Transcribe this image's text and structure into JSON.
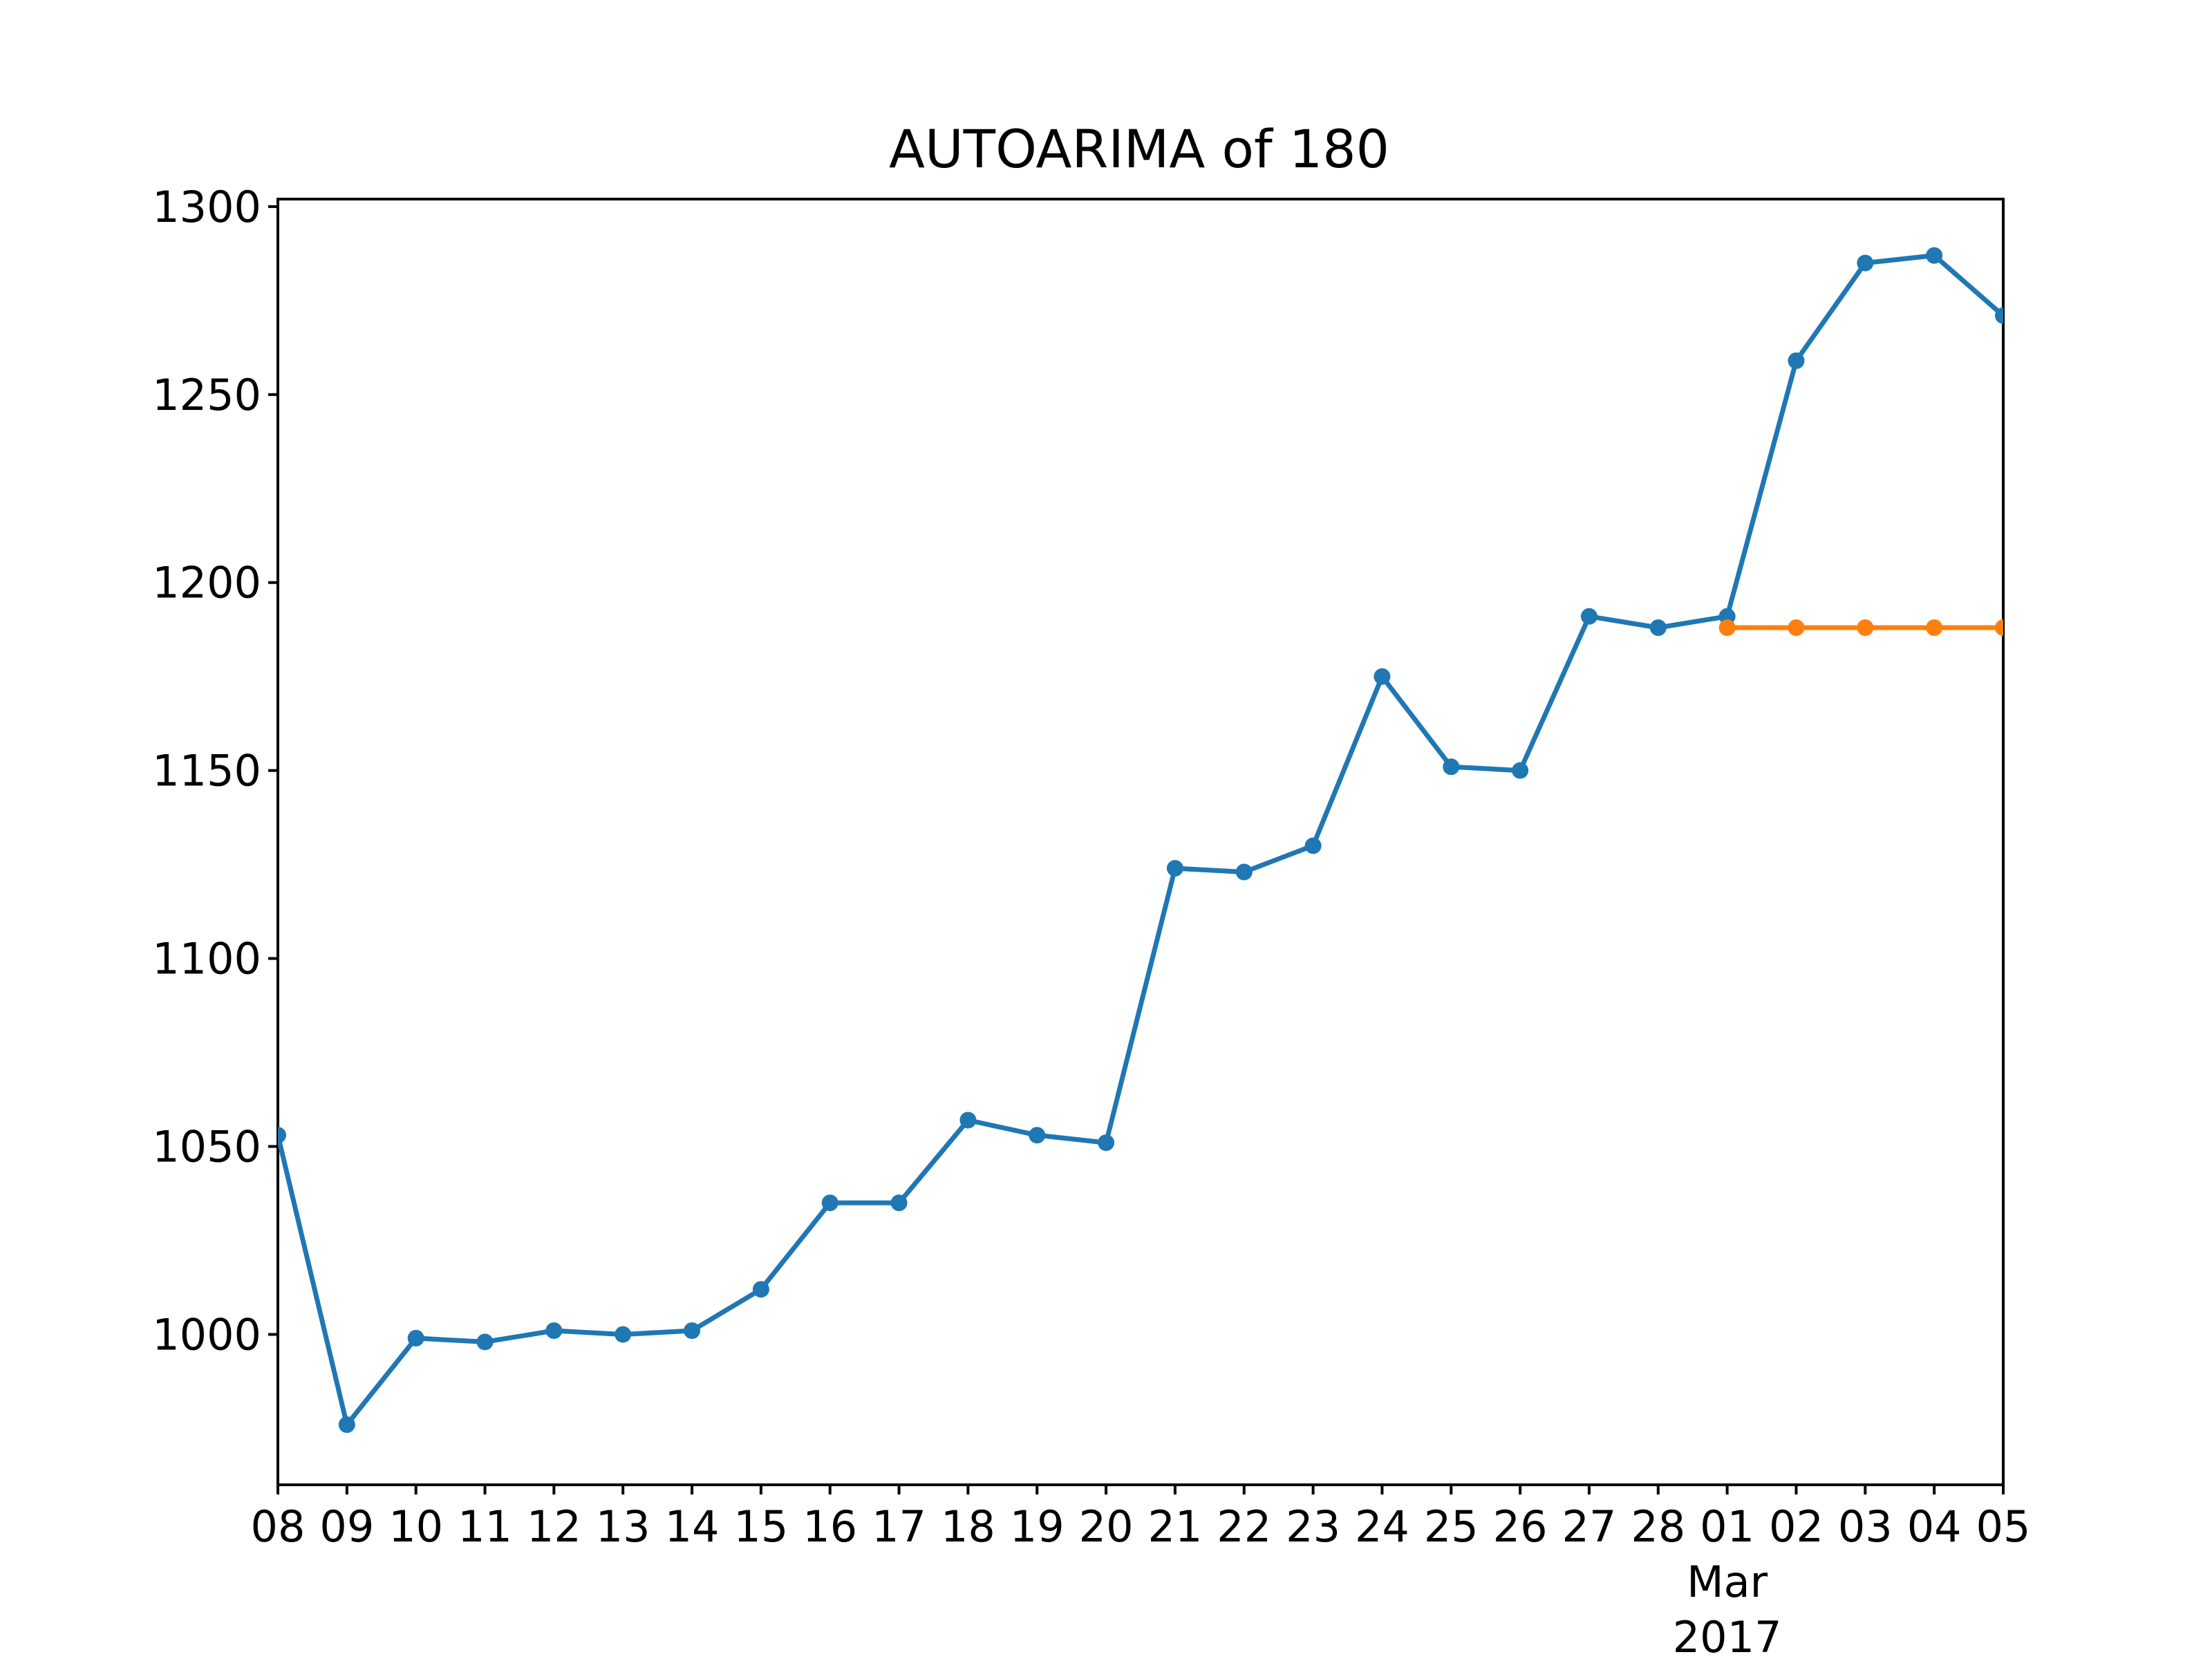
{
  "chart_data": {
    "type": "line",
    "title": "AUTOARIMA of 180",
    "xlabel": "",
    "ylabel": "",
    "x_tick_labels": [
      "08",
      "09",
      "10",
      "11",
      "12",
      "13",
      "14",
      "15",
      "16",
      "17",
      "18",
      "19",
      "20",
      "21",
      "22",
      "23",
      "24",
      "25",
      "26",
      "27",
      "28",
      "01",
      "02",
      "03",
      "04",
      "05"
    ],
    "x_tick_sublabels": {
      "index": 21,
      "month": "Mar",
      "year": "2017"
    },
    "x_range": [
      "2017-02-08",
      "2017-03-05"
    ],
    "y_ticks": [
      1000,
      1050,
      1100,
      1150,
      1200,
      1250,
      1300
    ],
    "ylim": [
      960,
      1302
    ],
    "grid": false,
    "series": [
      {
        "color": "#1f77b4",
        "x": [
          "2017-02-08",
          "2017-02-09",
          "2017-02-10",
          "2017-02-11",
          "2017-02-12",
          "2017-02-13",
          "2017-02-14",
          "2017-02-15",
          "2017-02-16",
          "2017-02-17",
          "2017-02-18",
          "2017-02-19",
          "2017-02-20",
          "2017-02-21",
          "2017-02-22",
          "2017-02-23",
          "2017-02-24",
          "2017-02-25",
          "2017-02-26",
          "2017-02-27",
          "2017-02-28",
          "2017-03-01",
          "2017-03-02",
          "2017-03-03",
          "2017-03-04",
          "2017-03-05"
        ],
        "values": [
          1053,
          976,
          999,
          998,
          1001,
          1000,
          1001,
          1012,
          1035,
          1035,
          1057,
          1053,
          1051,
          1124,
          1123,
          1130,
          1175,
          1151,
          1150,
          1191,
          1188,
          1191,
          1259,
          1285,
          1287,
          1271
        ]
      },
      {
        "color": "#ff7f0e",
        "x": [
          "2017-03-01",
          "2017-03-02",
          "2017-03-03",
          "2017-03-04",
          "2017-03-05"
        ],
        "values": [
          1188,
          1188,
          1188,
          1188,
          1188
        ]
      }
    ]
  }
}
